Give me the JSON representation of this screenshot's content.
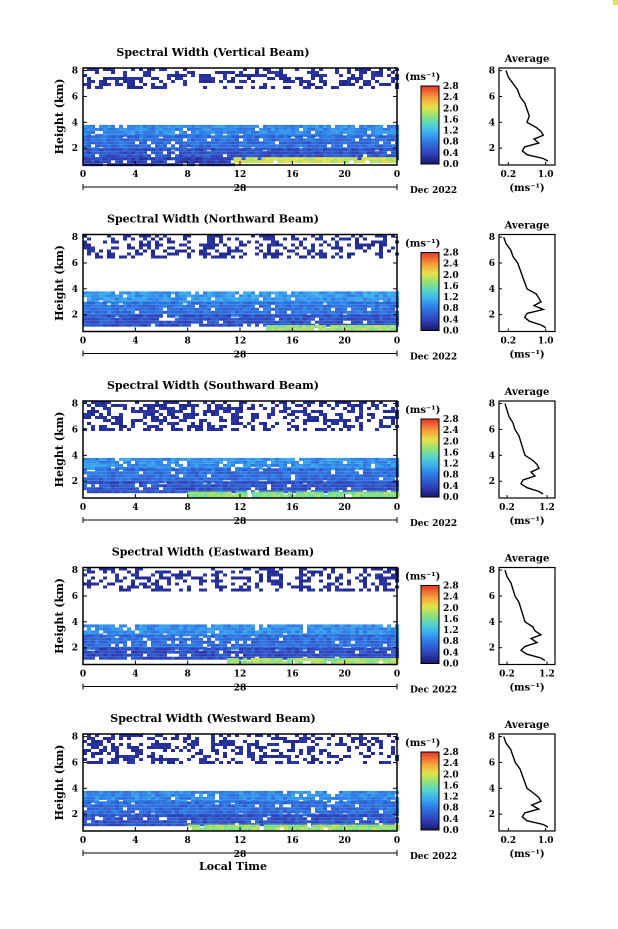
{
  "chart_data": [
    {
      "type": "heatmap",
      "title": "Spectral Width (Vertical Beam)",
      "ylabel": "Height (km)",
      "x_ticks": [
        "0",
        "4",
        "8",
        "12",
        "16",
        "20",
        "0"
      ],
      "y_ticks": [
        "2",
        "4",
        "6",
        "8"
      ],
      "xlim": [
        0,
        24
      ],
      "ylim": [
        0.7,
        8.2
      ],
      "day_label": "28",
      "month_label": "Dec 2022",
      "colorbar": {
        "unit": "(ms⁻¹)",
        "ticks": [
          "0.0",
          "0.4",
          "0.8",
          "1.2",
          "1.6",
          "2.0",
          "2.4",
          "2.8"
        ],
        "range": [
          0,
          2.8
        ]
      },
      "bands": [
        {
          "y0": 3.0,
          "y1": 3.8,
          "x0": 0,
          "x1": 24,
          "level": 0.9
        },
        {
          "y0": 2.0,
          "y1": 3.0,
          "x0": 0,
          "x1": 24,
          "level": 0.7
        },
        {
          "y0": 1.3,
          "y1": 2.0,
          "x0": 0,
          "x1": 24,
          "level": 0.5
        },
        {
          "y0": 0.8,
          "y1": 1.3,
          "x0": 0,
          "x1": 11.5,
          "level": 0.35
        },
        {
          "y0": 0.9,
          "y1": 1.3,
          "x0": 11.5,
          "x1": 24,
          "level": 2.0
        },
        {
          "y0": 6.8,
          "y1": 8.2,
          "x0": 0,
          "x1": 24,
          "level": 0.2,
          "sparse": true
        }
      ],
      "average_profile": {
        "title": "Average",
        "xlabel": "(ms⁻¹)",
        "x_ticks": [
          "0.2",
          "1.0"
        ],
        "xlim": [
          0.0,
          1.2
        ],
        "y_ticks": [
          "2",
          "4",
          "6",
          "8"
        ],
        "ylim": [
          0.7,
          8.2
        ],
        "height": [
          8.0,
          7.5,
          7.0,
          6.5,
          6.0,
          5.5,
          5.0,
          4.5,
          4.0,
          3.6,
          3.3,
          3.0,
          2.7,
          2.4,
          2.1,
          1.8,
          1.5,
          1.2,
          1.0
        ],
        "width": [
          0.15,
          0.2,
          0.3,
          0.4,
          0.45,
          0.55,
          0.6,
          0.65,
          0.6,
          0.8,
          0.9,
          0.95,
          0.75,
          0.85,
          0.55,
          0.5,
          0.6,
          0.95,
          1.05
        ]
      }
    },
    {
      "type": "heatmap",
      "title": "Spectral Width (Northward Beam)",
      "ylabel": "Height (km)",
      "x_ticks": [
        "0",
        "4",
        "8",
        "12",
        "16",
        "20",
        "0"
      ],
      "y_ticks": [
        "2",
        "4",
        "6",
        "8"
      ],
      "xlim": [
        0,
        24
      ],
      "ylim": [
        0.7,
        8.2
      ],
      "day_label": "28",
      "month_label": "Dec 2022",
      "colorbar": {
        "unit": "(ms⁻¹)",
        "ticks": [
          "0.0",
          "0.4",
          "0.8",
          "1.2",
          "1.6",
          "2.0",
          "2.4",
          "2.8"
        ],
        "range": [
          0,
          2.8
        ]
      },
      "bands": [
        {
          "y0": 3.0,
          "y1": 3.8,
          "x0": 0,
          "x1": 24,
          "level": 1.0
        },
        {
          "y0": 2.0,
          "y1": 3.0,
          "x0": 0,
          "x1": 24,
          "level": 0.75
        },
        {
          "y0": 1.2,
          "y1": 2.0,
          "x0": 0,
          "x1": 24,
          "level": 0.5
        },
        {
          "y0": 0.8,
          "y1": 1.2,
          "x0": 14,
          "x1": 24,
          "level": 1.8
        },
        {
          "y0": 6.5,
          "y1": 8.2,
          "x0": 0,
          "x1": 24,
          "level": 0.2,
          "sparse": true
        }
      ],
      "average_profile": {
        "title": "Average",
        "xlabel": "(ms⁻¹)",
        "x_ticks": [
          "0.2",
          "1.0"
        ],
        "xlim": [
          0.0,
          1.2
        ],
        "y_ticks": [
          "2",
          "4",
          "6",
          "8"
        ],
        "ylim": [
          0.7,
          8.2
        ],
        "height": [
          8.0,
          7.5,
          7.0,
          6.5,
          6.0,
          5.5,
          5.0,
          4.5,
          4.0,
          3.6,
          3.3,
          3.0,
          2.7,
          2.4,
          2.1,
          1.8,
          1.5,
          1.2,
          1.0
        ],
        "width": [
          0.1,
          0.15,
          0.25,
          0.3,
          0.4,
          0.45,
          0.5,
          0.55,
          0.6,
          0.8,
          0.85,
          0.9,
          0.75,
          0.95,
          0.6,
          0.55,
          0.65,
          0.9,
          1.0
        ]
      }
    },
    {
      "type": "heatmap",
      "title": "Spectral Width (Southward Beam)",
      "ylabel": "Height (km)",
      "x_ticks": [
        "0",
        "4",
        "8",
        "12",
        "16",
        "20",
        "0"
      ],
      "y_ticks": [
        "2",
        "4",
        "6",
        "8"
      ],
      "xlim": [
        0,
        24
      ],
      "ylim": [
        0.7,
        8.2
      ],
      "day_label": "28",
      "month_label": "Dec 2022",
      "colorbar": {
        "unit": "(ms⁻¹)",
        "ticks": [
          "0.0",
          "0.4",
          "0.8",
          "1.2",
          "1.6",
          "2.0",
          "2.4",
          "2.8"
        ],
        "range": [
          0,
          2.8
        ]
      },
      "bands": [
        {
          "y0": 3.0,
          "y1": 3.8,
          "x0": 0,
          "x1": 24,
          "level": 0.95
        },
        {
          "y0": 2.0,
          "y1": 3.0,
          "x0": 0,
          "x1": 24,
          "level": 0.7
        },
        {
          "y0": 1.2,
          "y1": 2.0,
          "x0": 0,
          "x1": 24,
          "level": 0.5
        },
        {
          "y0": 0.8,
          "y1": 1.2,
          "x0": 8,
          "x1": 24,
          "level": 1.7
        },
        {
          "y0": 6.0,
          "y1": 8.2,
          "x0": 0,
          "x1": 24,
          "level": 0.2,
          "sparse": true
        }
      ],
      "average_profile": {
        "title": "Average",
        "xlabel": "(ms⁻¹)",
        "x_ticks": [
          "0.2",
          "1.2"
        ],
        "xlim": [
          0.0,
          1.4
        ],
        "y_ticks": [
          "2",
          "4",
          "6",
          "8"
        ],
        "ylim": [
          0.7,
          8.2
        ],
        "height": [
          8.0,
          7.5,
          7.0,
          6.5,
          6.0,
          5.5,
          5.0,
          4.5,
          4.0,
          3.6,
          3.3,
          3.0,
          2.7,
          2.4,
          2.1,
          1.8,
          1.5,
          1.2,
          1.0
        ],
        "width": [
          0.15,
          0.2,
          0.25,
          0.35,
          0.4,
          0.5,
          0.55,
          0.6,
          0.65,
          0.85,
          0.95,
          1.0,
          0.8,
          0.9,
          0.6,
          0.55,
          0.7,
          1.0,
          1.1
        ]
      }
    },
    {
      "type": "heatmap",
      "title": "Spectral Width (Eastward Beam)",
      "ylabel": "Height (km)",
      "x_ticks": [
        "0",
        "4",
        "8",
        "12",
        "16",
        "20",
        "0"
      ],
      "y_ticks": [
        "2",
        "4",
        "6",
        "8"
      ],
      "xlim": [
        0,
        24
      ],
      "ylim": [
        0.7,
        8.2
      ],
      "day_label": "28",
      "month_label": "Dec 2022",
      "colorbar": {
        "unit": "(ms⁻¹)",
        "ticks": [
          "0.0",
          "0.4",
          "0.8",
          "1.2",
          "1.6",
          "2.0",
          "2.4",
          "2.8"
        ],
        "range": [
          0,
          2.8
        ]
      },
      "bands": [
        {
          "y0": 3.0,
          "y1": 3.8,
          "x0": 0,
          "x1": 24,
          "level": 0.95
        },
        {
          "y0": 2.0,
          "y1": 3.0,
          "x0": 0,
          "x1": 24,
          "level": 0.7
        },
        {
          "y0": 1.2,
          "y1": 2.0,
          "x0": 0,
          "x1": 24,
          "level": 0.45
        },
        {
          "y0": 0.8,
          "y1": 1.2,
          "x0": 11,
          "x1": 24,
          "level": 1.8
        },
        {
          "y0": 6.5,
          "y1": 8.2,
          "x0": 0,
          "x1": 24,
          "level": 0.2,
          "sparse": true
        }
      ],
      "average_profile": {
        "title": "Average",
        "xlabel": "(ms⁻¹)",
        "x_ticks": [
          "0.2",
          "1.2"
        ],
        "xlim": [
          0.0,
          1.4
        ],
        "y_ticks": [
          "2",
          "4",
          "6",
          "8"
        ],
        "ylim": [
          0.7,
          8.2
        ],
        "height": [
          8.0,
          7.5,
          7.0,
          6.5,
          6.0,
          5.5,
          5.0,
          4.5,
          4.0,
          3.6,
          3.3,
          3.0,
          2.7,
          2.4,
          2.1,
          1.8,
          1.5,
          1.2,
          1.0
        ],
        "width": [
          0.15,
          0.2,
          0.3,
          0.35,
          0.4,
          0.5,
          0.55,
          0.6,
          0.65,
          0.85,
          0.9,
          1.05,
          0.8,
          0.95,
          0.65,
          0.55,
          0.7,
          1.05,
          1.15
        ]
      }
    },
    {
      "type": "heatmap",
      "title": "Spectral Width (Westward Beam)",
      "ylabel": "Height (km)",
      "xlabel": "Local Time",
      "x_ticks": [
        "0",
        "4",
        "8",
        "12",
        "16",
        "20",
        "0"
      ],
      "y_ticks": [
        "2",
        "4",
        "6",
        "8"
      ],
      "xlim": [
        0,
        24
      ],
      "ylim": [
        0.7,
        8.2
      ],
      "day_label": "28",
      "month_label": "Dec 2022",
      "colorbar": {
        "unit": "(ms⁻¹)",
        "ticks": [
          "0.0",
          "0.4",
          "0.8",
          "1.2",
          "1.6",
          "2.0",
          "2.4",
          "2.8"
        ],
        "range": [
          0,
          2.8
        ]
      },
      "bands": [
        {
          "y0": 3.0,
          "y1": 3.8,
          "x0": 0,
          "x1": 24,
          "level": 0.9
        },
        {
          "y0": 2.0,
          "y1": 3.0,
          "x0": 0,
          "x1": 24,
          "level": 0.7
        },
        {
          "y0": 1.2,
          "y1": 2.0,
          "x0": 0,
          "x1": 24,
          "level": 0.5
        },
        {
          "y0": 0.8,
          "y1": 1.2,
          "x0": 8,
          "x1": 24,
          "level": 1.8
        },
        {
          "y0": 6.0,
          "y1": 8.2,
          "x0": 0,
          "x1": 24,
          "level": 0.2,
          "sparse": true
        }
      ],
      "average_profile": {
        "title": "Average",
        "xlabel": "(ms⁻¹)",
        "x_ticks": [
          "0.2",
          "1.0"
        ],
        "xlim": [
          0.0,
          1.2
        ],
        "y_ticks": [
          "2",
          "4",
          "6",
          "8"
        ],
        "ylim": [
          0.7,
          8.2
        ],
        "height": [
          8.0,
          7.5,
          7.0,
          6.5,
          6.0,
          5.5,
          5.0,
          4.5,
          4.0,
          3.6,
          3.3,
          3.0,
          2.7,
          2.4,
          2.1,
          1.8,
          1.5,
          1.2,
          1.0
        ],
        "width": [
          0.1,
          0.15,
          0.25,
          0.3,
          0.35,
          0.45,
          0.5,
          0.55,
          0.6,
          0.75,
          0.85,
          0.9,
          0.7,
          0.85,
          0.55,
          0.5,
          0.6,
          0.95,
          1.05
        ]
      }
    }
  ]
}
